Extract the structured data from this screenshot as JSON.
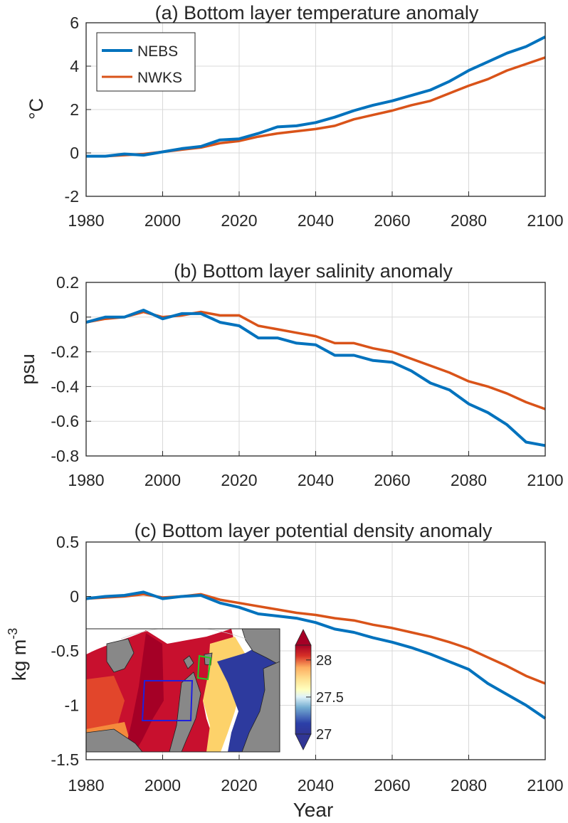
{
  "colors": {
    "nebs": "#0072BD",
    "nwks": "#D95319",
    "axis": "#262626",
    "grid": "#d9d9d9"
  },
  "legend": {
    "nebs": "NEBS",
    "nwks": "NWKS"
  },
  "xaxis": {
    "label": "Year",
    "ticks": [
      "1980",
      "2000",
      "2020",
      "2040",
      "2060",
      "2080",
      "2100"
    ]
  },
  "panels": {
    "a": {
      "title": "(a) Bottom layer temperature anomaly",
      "ylabel": "°C",
      "yticks": [
        "6",
        "4",
        "2",
        "0",
        "-2"
      ]
    },
    "b": {
      "title": "(b) Bottom layer salinity anomaly",
      "ylabel": "psu",
      "yticks": [
        "0.2",
        "0",
        "-0.2",
        "-0.4",
        "-0.6",
        "-0.8"
      ]
    },
    "c": {
      "title": "(c) Bottom layer potential density anomaly",
      "ylabel_main": "kg m",
      "ylabel_sup": "-3",
      "yticks": [
        "0.5",
        "0",
        "-0.5",
        "-1",
        "-1.5"
      ]
    }
  },
  "inset": {
    "colorbar_ticks": [
      "28",
      "27.5",
      "27"
    ],
    "colorbar_range": [
      27,
      28.2
    ]
  },
  "chart_data": [
    {
      "type": "line",
      "title": "(a) Bottom layer temperature anomaly",
      "xlabel": "Year",
      "ylabel": "°C",
      "xlim": [
        1980,
        2100
      ],
      "ylim": [
        -2,
        6
      ],
      "grid": true,
      "legend": "top-left",
      "series": [
        {
          "name": "NEBS",
          "x": [
            1980,
            1985,
            1990,
            1995,
            2000,
            2005,
            2010,
            2015,
            2020,
            2025,
            2030,
            2035,
            2040,
            2045,
            2050,
            2055,
            2060,
            2065,
            2070,
            2075,
            2080,
            2085,
            2090,
            2095,
            2100
          ],
          "y": [
            -0.15,
            -0.15,
            -0.05,
            -0.1,
            0.05,
            0.2,
            0.3,
            0.6,
            0.65,
            0.9,
            1.2,
            1.25,
            1.4,
            1.65,
            1.95,
            2.2,
            2.4,
            2.65,
            2.9,
            3.3,
            3.8,
            4.2,
            4.6,
            4.9,
            5.35
          ]
        },
        {
          "name": "NWKS",
          "x": [
            1980,
            1985,
            1990,
            1995,
            2000,
            2005,
            2010,
            2015,
            2020,
            2025,
            2030,
            2035,
            2040,
            2045,
            2050,
            2055,
            2060,
            2065,
            2070,
            2075,
            2080,
            2085,
            2090,
            2095,
            2100
          ],
          "y": [
            -0.15,
            -0.15,
            -0.1,
            -0.05,
            0.05,
            0.15,
            0.25,
            0.45,
            0.55,
            0.75,
            0.9,
            1.0,
            1.1,
            1.25,
            1.55,
            1.75,
            1.95,
            2.2,
            2.4,
            2.75,
            3.1,
            3.4,
            3.8,
            4.1,
            4.4
          ]
        }
      ]
    },
    {
      "type": "line",
      "title": "(b) Bottom layer salinity anomaly",
      "xlabel": "Year",
      "ylabel": "psu",
      "xlim": [
        1980,
        2100
      ],
      "ylim": [
        -0.8,
        0.2
      ],
      "grid": true,
      "series": [
        {
          "name": "NEBS",
          "x": [
            1980,
            1985,
            1990,
            1995,
            2000,
            2005,
            2010,
            2015,
            2020,
            2025,
            2030,
            2035,
            2040,
            2045,
            2050,
            2055,
            2060,
            2065,
            2070,
            2075,
            2080,
            2085,
            2090,
            2095,
            2100
          ],
          "y": [
            -0.03,
            0.0,
            0.0,
            0.04,
            -0.01,
            0.02,
            0.02,
            -0.03,
            -0.05,
            -0.12,
            -0.12,
            -0.15,
            -0.16,
            -0.22,
            -0.22,
            -0.25,
            -0.26,
            -0.31,
            -0.38,
            -0.42,
            -0.5,
            -0.55,
            -0.62,
            -0.72,
            -0.74
          ]
        },
        {
          "name": "NWKS",
          "x": [
            1980,
            1985,
            1990,
            1995,
            2000,
            2005,
            2010,
            2015,
            2020,
            2025,
            2030,
            2035,
            2040,
            2045,
            2050,
            2055,
            2060,
            2065,
            2070,
            2075,
            2080,
            2085,
            2090,
            2095,
            2100
          ],
          "y": [
            -0.03,
            -0.01,
            0.0,
            0.03,
            0.0,
            0.01,
            0.03,
            0.01,
            0.01,
            -0.05,
            -0.07,
            -0.09,
            -0.11,
            -0.15,
            -0.15,
            -0.18,
            -0.2,
            -0.24,
            -0.28,
            -0.32,
            -0.37,
            -0.4,
            -0.44,
            -0.49,
            -0.53
          ]
        }
      ]
    },
    {
      "type": "line",
      "title": "(c) Bottom layer potential density anomaly",
      "xlabel": "Year",
      "ylabel": "kg m-3",
      "xlim": [
        1980,
        2100
      ],
      "ylim": [
        -1.5,
        0.5
      ],
      "grid": true,
      "series": [
        {
          "name": "NEBS",
          "x": [
            1980,
            1985,
            1990,
            1995,
            2000,
            2005,
            2010,
            2015,
            2020,
            2025,
            2030,
            2035,
            2040,
            2045,
            2050,
            2055,
            2060,
            2065,
            2070,
            2075,
            2080,
            2085,
            2090,
            2095,
            2100
          ],
          "y": [
            -0.02,
            0.0,
            0.01,
            0.04,
            -0.02,
            0.0,
            0.01,
            -0.06,
            -0.1,
            -0.16,
            -0.18,
            -0.2,
            -0.24,
            -0.3,
            -0.33,
            -0.38,
            -0.42,
            -0.47,
            -0.53,
            -0.6,
            -0.67,
            -0.8,
            -0.9,
            -1.0,
            -1.12
          ]
        },
        {
          "name": "NWKS",
          "x": [
            1980,
            1985,
            1990,
            1995,
            2000,
            2005,
            2010,
            2015,
            2020,
            2025,
            2030,
            2035,
            2040,
            2045,
            2050,
            2055,
            2060,
            2065,
            2070,
            2075,
            2080,
            2085,
            2090,
            2095,
            2100
          ],
          "y": [
            -0.02,
            -0.01,
            0.0,
            0.02,
            -0.01,
            0.0,
            0.02,
            -0.03,
            -0.06,
            -0.09,
            -0.12,
            -0.15,
            -0.17,
            -0.2,
            -0.22,
            -0.26,
            -0.29,
            -0.33,
            -0.37,
            -0.42,
            -0.48,
            -0.56,
            -0.64,
            -0.73,
            -0.8
          ]
        }
      ]
    }
  ]
}
